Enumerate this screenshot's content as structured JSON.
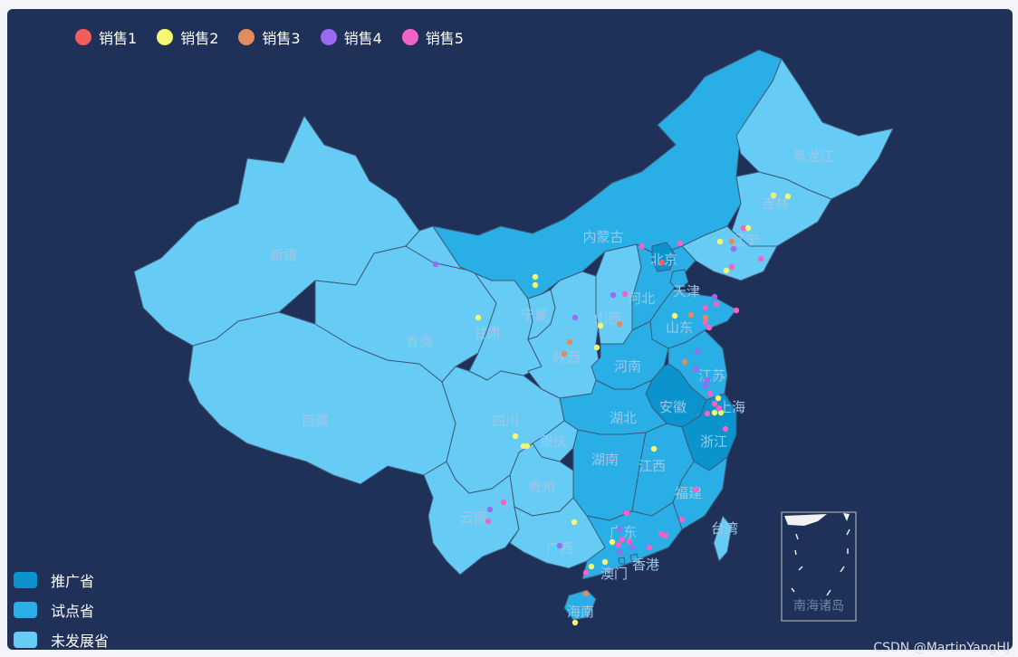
{
  "colors": {
    "background": "#1f3158",
    "promoted": "#0a93cc",
    "pilot": "#29aee6",
    "undeveloped": "#66ccf6",
    "border": "#3f5a7a"
  },
  "legend_series": [
    {
      "label": "销售1",
      "color": "#f65c5c"
    },
    {
      "label": "销售2",
      "color": "#f7f770"
    },
    {
      "label": "销售3",
      "color": "#e08c5c"
    },
    {
      "label": "销售4",
      "color": "#9a6af0"
    },
    {
      "label": "销售5",
      "color": "#f462c8"
    }
  ],
  "legend_categories": [
    {
      "label": "推广省",
      "color": "#0a93cc"
    },
    {
      "label": "试点省",
      "color": "#29aee6"
    },
    {
      "label": "未发展省",
      "color": "#66ccf6"
    }
  ],
  "provinces": [
    {
      "name": "新疆",
      "status": "undeveloped"
    },
    {
      "name": "西藏",
      "status": "undeveloped"
    },
    {
      "name": "青海",
      "status": "undeveloped"
    },
    {
      "name": "甘肃",
      "status": "undeveloped"
    },
    {
      "name": "内蒙古",
      "status": "pilot"
    },
    {
      "name": "黑龙江",
      "status": "undeveloped"
    },
    {
      "name": "吉林",
      "status": "undeveloped"
    },
    {
      "name": "辽宁",
      "status": "undeveloped"
    },
    {
      "name": "宁夏",
      "status": "undeveloped"
    },
    {
      "name": "陕西",
      "status": "undeveloped"
    },
    {
      "name": "山西",
      "status": "undeveloped"
    },
    {
      "name": "河北",
      "status": "pilot"
    },
    {
      "name": "北京",
      "status": "promoted"
    },
    {
      "name": "天津",
      "status": "pilot"
    },
    {
      "name": "山东",
      "status": "pilot"
    },
    {
      "name": "河南",
      "status": "pilot"
    },
    {
      "name": "江苏",
      "status": "pilot"
    },
    {
      "name": "安徽",
      "status": "promoted"
    },
    {
      "name": "上海",
      "status": "promoted"
    },
    {
      "name": "浙江",
      "status": "promoted"
    },
    {
      "name": "湖北",
      "status": "pilot"
    },
    {
      "name": "四川",
      "status": "undeveloped"
    },
    {
      "name": "重庆",
      "status": "undeveloped"
    },
    {
      "name": "湖南",
      "status": "pilot"
    },
    {
      "name": "江西",
      "status": "pilot"
    },
    {
      "name": "福建",
      "status": "pilot"
    },
    {
      "name": "贵州",
      "status": "undeveloped"
    },
    {
      "name": "云南",
      "status": "undeveloped"
    },
    {
      "name": "广西",
      "status": "undeveloped"
    },
    {
      "name": "广东",
      "status": "pilot"
    },
    {
      "name": "台湾",
      "status": "undeveloped"
    },
    {
      "name": "香港",
      "status": "pilot"
    },
    {
      "name": "澳门",
      "status": "pilot"
    },
    {
      "name": "海南",
      "status": "pilot"
    }
  ],
  "inset_label": "南海诸岛",
  "watermark": "CSDN @MartinYangHJ"
}
